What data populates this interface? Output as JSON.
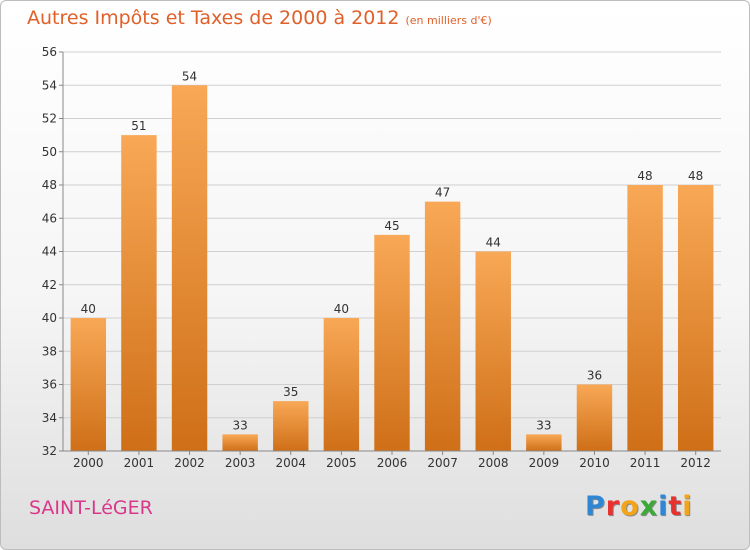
{
  "header": {
    "title": "Autres Impôts et Taxes de 2000 à 2012",
    "subtitle": "(en milliers d'€)"
  },
  "footer": {
    "location": "SAINT-LéGER",
    "brand_letters": [
      "P",
      "r",
      "o",
      "x",
      "i",
      "t",
      "i"
    ],
    "brand_colors": [
      "#2e86d4",
      "#e8322f",
      "#f2a41a",
      "#3aa935",
      "#2e86d4",
      "#e8322f",
      "#f2a41a"
    ]
  },
  "colors": {
    "bar_light": "#f8a856",
    "bar_dark": "#cf6f18",
    "axis": "#888888",
    "grid": "#d0d0d0",
    "text": "#333333"
  },
  "chart_data": {
    "type": "bar",
    "title": "Autres Impôts et Taxes de 2000 à 2012",
    "categories": [
      "2000",
      "2001",
      "2002",
      "2003",
      "2004",
      "2005",
      "2006",
      "2007",
      "2008",
      "2009",
      "2010",
      "2011",
      "2012"
    ],
    "values": [
      40,
      51,
      54,
      33,
      35,
      40,
      45,
      47,
      44,
      33,
      36,
      48,
      48
    ],
    "ylim": [
      32,
      56
    ],
    "yticks": [
      32,
      34,
      36,
      38,
      40,
      42,
      44,
      46,
      48,
      50,
      52,
      54,
      56
    ],
    "grid": true,
    "xlabel": "",
    "ylabel": ""
  }
}
